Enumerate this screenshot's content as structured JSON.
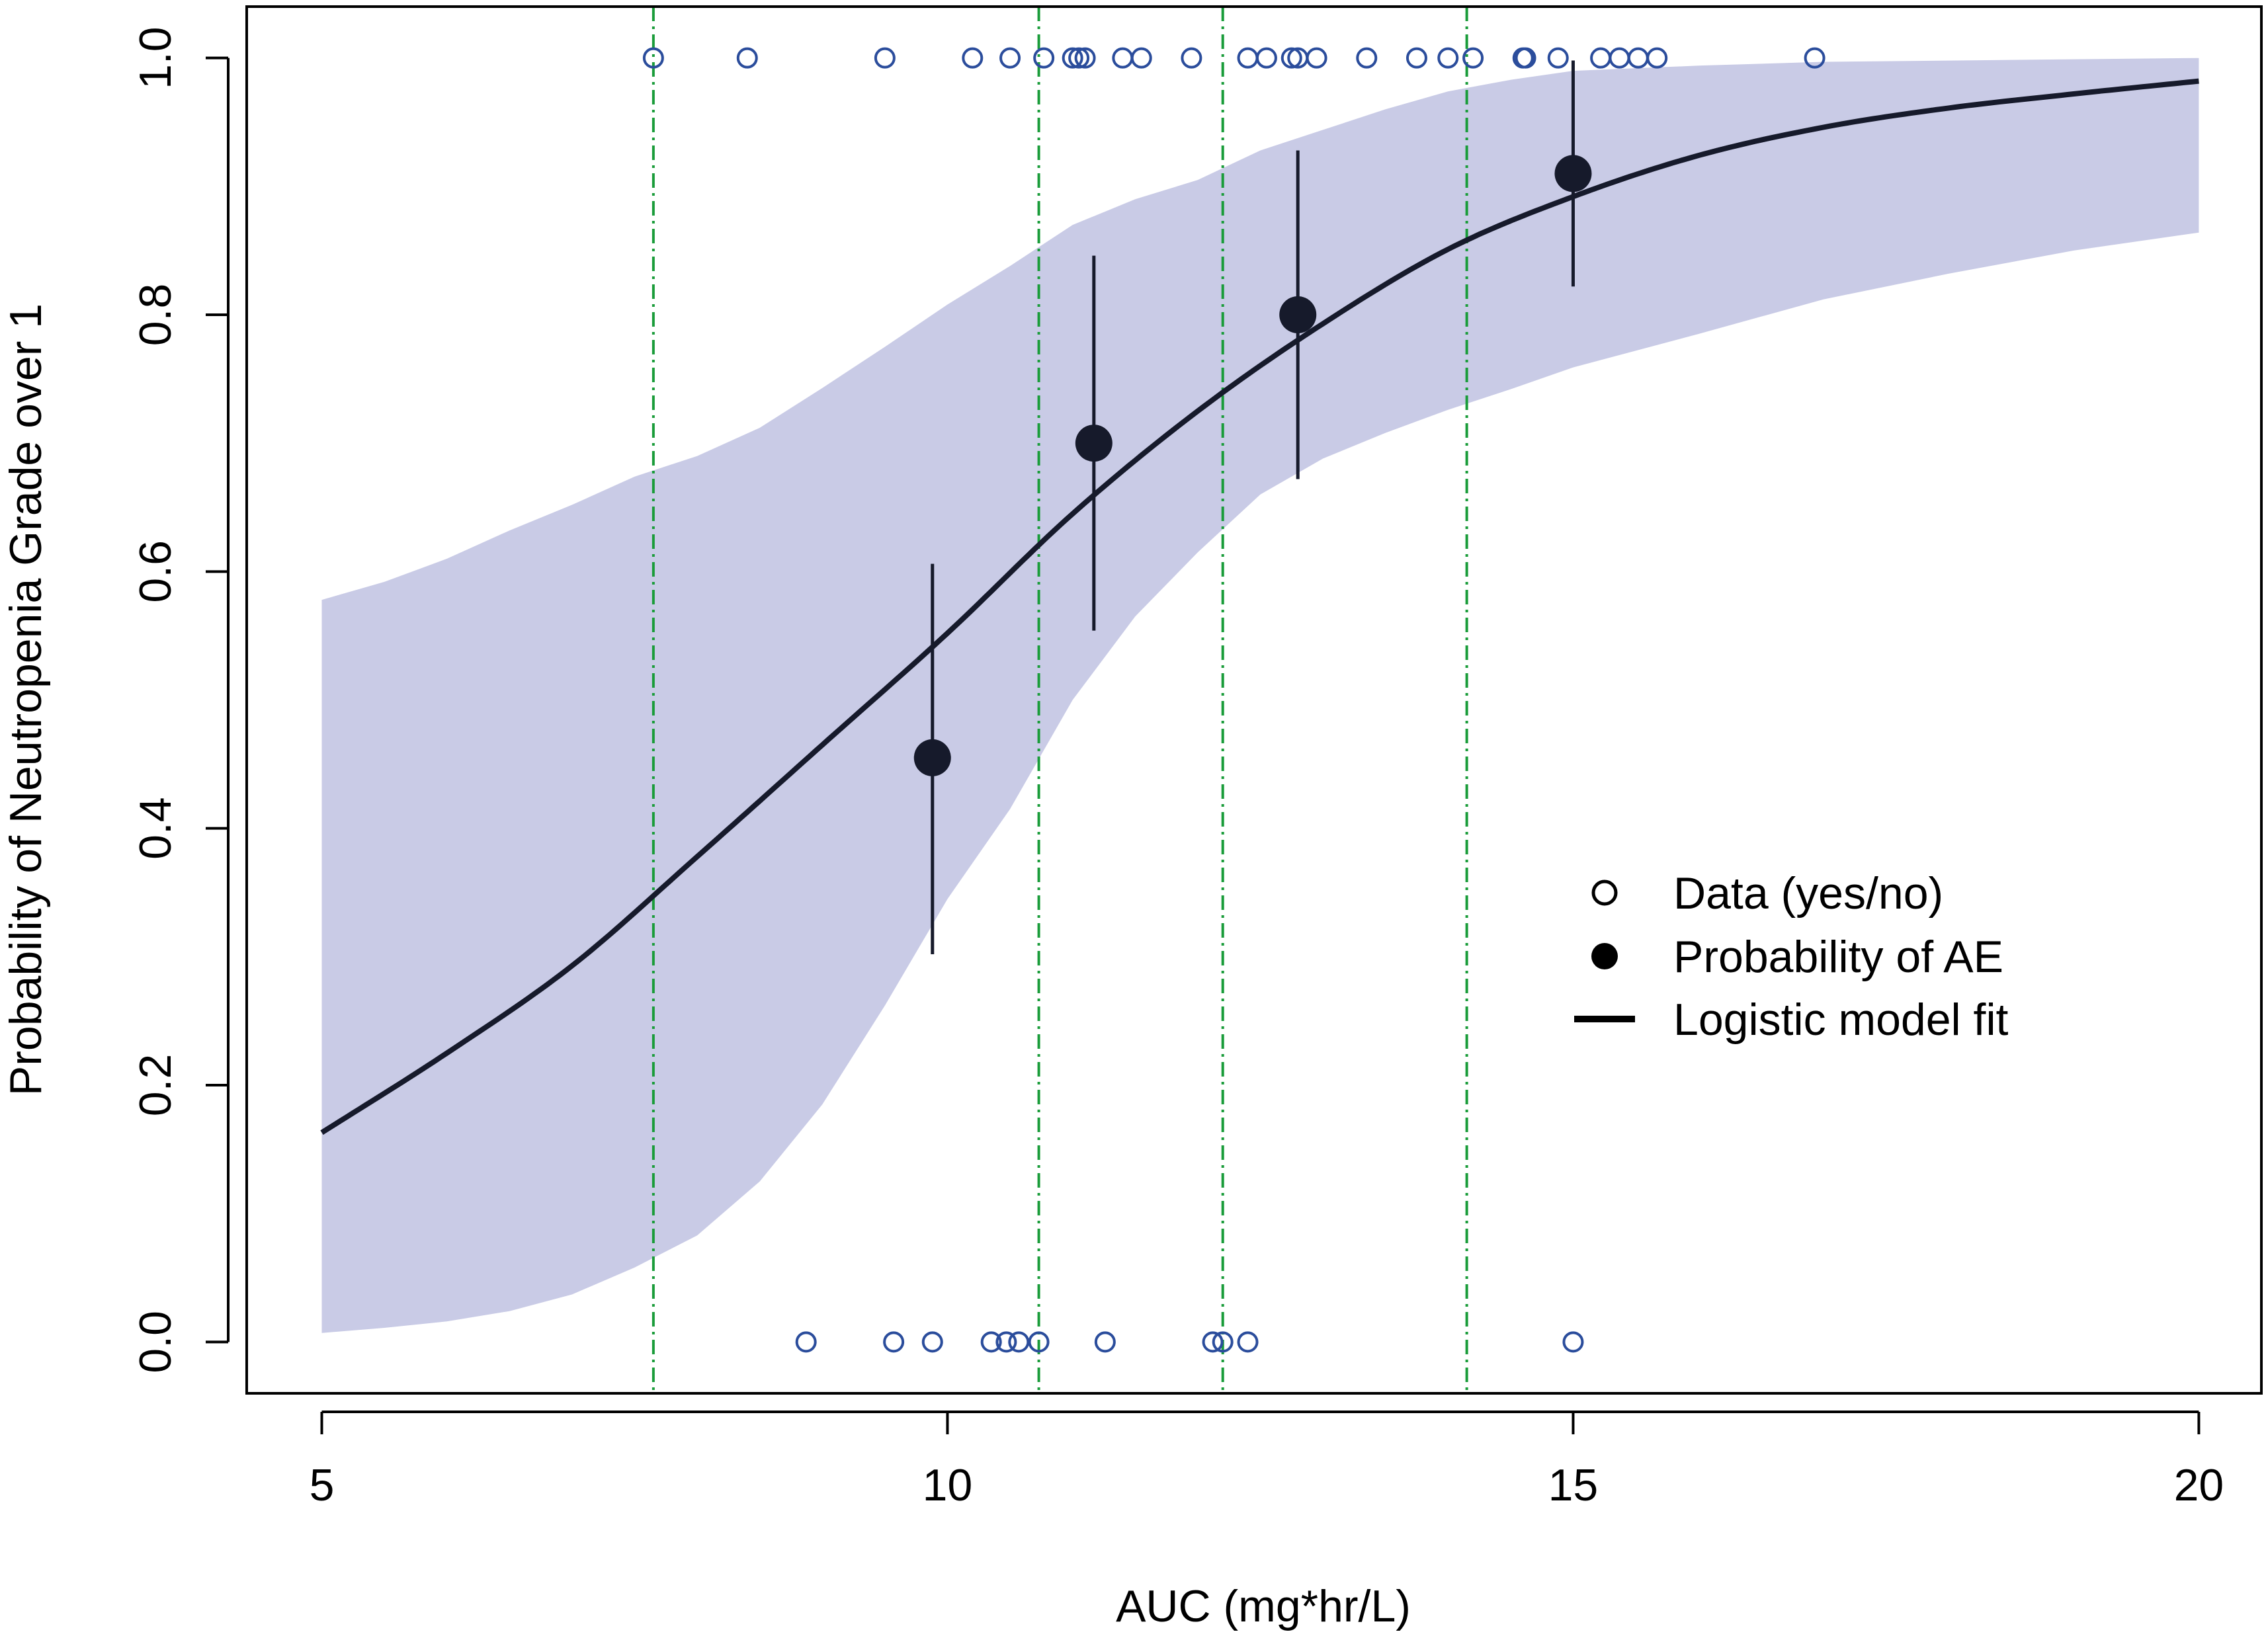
{
  "chart_data": {
    "type": "line",
    "title": "",
    "xlabel": "AUC (mg*hr/L)",
    "ylabel": "Probability of Neutropenia Grade over 1",
    "xlim": [
      4.4,
      20.5
    ],
    "ylim": [
      -0.04,
      1.04
    ],
    "xticks": [
      5,
      10,
      15,
      20
    ],
    "xtick_labels": [
      "5",
      "10",
      "15",
      "20"
    ],
    "yticks": [
      0.0,
      0.2,
      0.4,
      0.6,
      0.8,
      1.0
    ],
    "ytick_labels": [
      "0.0",
      "0.2",
      "0.4",
      "0.6",
      "0.8",
      "1.0"
    ],
    "grid": false,
    "legend_position": "right",
    "legend": [
      {
        "marker": "open-circle",
        "label": "Data (yes/no)"
      },
      {
        "marker": "filled-circle",
        "label": "Probability of AE"
      },
      {
        "marker": "line",
        "label": "Logistic model fit"
      }
    ],
    "colors": {
      "data_points": "#2b4d9c",
      "summary_points": "#161a2b",
      "fit_line": "#161a2b",
      "ci_band": "#c9cbe6",
      "quantile_lines": "#1a9c3a",
      "axis": "#000000"
    },
    "logistic_fit": {
      "x": [
        5,
        6,
        7,
        8,
        9,
        10,
        11,
        12,
        13,
        14,
        15,
        16,
        17,
        18,
        19,
        20
      ],
      "y": [
        0.163,
        0.225,
        0.293,
        0.378,
        0.465,
        0.552,
        0.645,
        0.725,
        0.793,
        0.851,
        0.892,
        0.924,
        0.946,
        0.961,
        0.972,
        0.982
      ]
    },
    "confidence_band": {
      "x": [
        5,
        5.5,
        6,
        6.5,
        7,
        7.5,
        8,
        8.5,
        9,
        9.5,
        10,
        10.5,
        11,
        11.5,
        12,
        12.5,
        13,
        13.5,
        14,
        14.5,
        15,
        16,
        17,
        18,
        19,
        20
      ],
      "lower": [
        0.007,
        0.011,
        0.016,
        0.024,
        0.037,
        0.058,
        0.083,
        0.125,
        0.185,
        0.262,
        0.345,
        0.415,
        0.5,
        0.565,
        0.615,
        0.66,
        0.688,
        0.708,
        0.726,
        0.742,
        0.759,
        0.785,
        0.812,
        0.832,
        0.85,
        0.864
      ],
      "upper": [
        0.578,
        0.592,
        0.61,
        0.632,
        0.652,
        0.674,
        0.69,
        0.712,
        0.743,
        0.775,
        0.808,
        0.838,
        0.87,
        0.89,
        0.905,
        0.928,
        0.944,
        0.96,
        0.974,
        0.983,
        0.99,
        0.994,
        0.997,
        0.998,
        0.999,
        1.0
      ]
    },
    "quantile_lines_x": [
      7.65,
      10.73,
      12.2,
      14.15
    ],
    "summary_points": [
      {
        "x": 9.88,
        "y": 0.455,
        "lower": 0.302,
        "upper": 0.606
      },
      {
        "x": 11.17,
        "y": 0.7,
        "lower": 0.554,
        "upper": 0.846
      },
      {
        "x": 12.8,
        "y": 0.8,
        "lower": 0.672,
        "upper": 0.928
      },
      {
        "x": 15.0,
        "y": 0.91,
        "lower": 0.822,
        "upper": 0.998
      }
    ],
    "observed_yes": [
      7.65,
      8.4,
      9.5,
      10.2,
      10.5,
      10.77,
      11.0,
      11.05,
      11.1,
      11.4,
      11.55,
      11.95,
      12.4,
      12.55,
      12.75,
      12.8,
      12.95,
      13.35,
      13.75,
      14.0,
      14.2,
      14.6,
      14.62,
      14.88,
      15.22,
      15.37,
      15.52,
      15.67,
      16.93
    ],
    "observed_no": [
      8.87,
      9.57,
      9.88,
      10.35,
      10.47,
      10.57,
      10.73,
      11.26,
      12.12,
      12.2,
      12.4,
      15.0
    ]
  }
}
